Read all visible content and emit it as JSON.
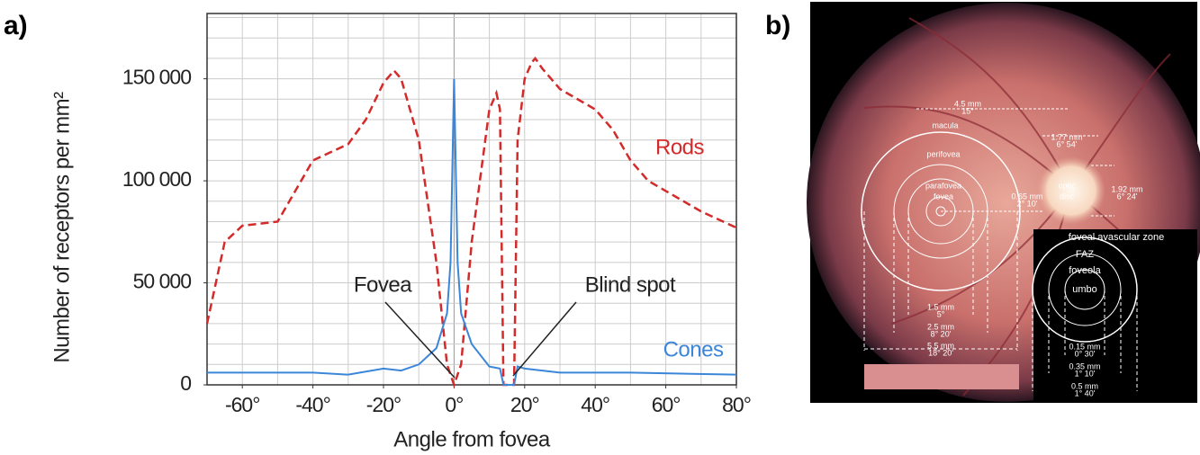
{
  "panels": {
    "a": "a)",
    "b": "b)"
  },
  "chart_data": {
    "type": "line",
    "ylabel": "Number of receptors per mm²",
    "xlabel": "Angle from fovea",
    "xlim": [
      -70,
      80
    ],
    "ylim": [
      0,
      182000
    ],
    "xticks": [
      {
        "value": -60,
        "label": "-60°"
      },
      {
        "value": -40,
        "label": "-40°"
      },
      {
        "value": -20,
        "label": "-20°"
      },
      {
        "value": 0,
        "label": "0°"
      },
      {
        "value": 20,
        "label": "20°"
      },
      {
        "value": 40,
        "label": "40°"
      },
      {
        "value": 60,
        "label": "60°"
      },
      {
        "value": 80,
        "label": "80°"
      }
    ],
    "yticks": [
      0,
      {
        "value": 50000,
        "label": "50 000"
      },
      {
        "value": 100000,
        "label": "100 000"
      },
      {
        "value": 150000,
        "label": "150 000"
      }
    ],
    "x_minor_ticks": [
      -70,
      -60,
      -50,
      -40,
      -30,
      -20,
      -10,
      0,
      10,
      20,
      30,
      40,
      50,
      60,
      70,
      80
    ],
    "y_minor_ticks": [
      10000,
      20000,
      30000,
      40000,
      50000,
      60000,
      70000,
      80000,
      90000,
      100000,
      110000,
      120000,
      130000,
      140000,
      150000,
      160000,
      170000,
      180000
    ],
    "grid": true,
    "series": [
      {
        "name": "Rods",
        "color": "#d42a2a",
        "dashed": true,
        "x": [
          -70,
          -65,
          -60,
          -50,
          -45,
          -40,
          -30,
          -25,
          -20,
          -17,
          -15,
          -10,
          -5,
          -2,
          0,
          2,
          5,
          10,
          12,
          13,
          14,
          17,
          18,
          20,
          22,
          23,
          25,
          30,
          40,
          45,
          50,
          55,
          60,
          65,
          70,
          80
        ],
        "values": [
          30000,
          70000,
          78000,
          80000,
          95000,
          110000,
          118000,
          130000,
          148000,
          154000,
          150000,
          120000,
          60000,
          10000,
          0,
          10000,
          70000,
          135000,
          143000,
          135000,
          0,
          0,
          120000,
          150000,
          158000,
          160000,
          155000,
          145000,
          135000,
          125000,
          110000,
          100000,
          95000,
          90000,
          85000,
          77000
        ]
      },
      {
        "name": "Cones",
        "color": "#3b86d8",
        "dashed": false,
        "x": [
          -70,
          -40,
          -30,
          -20,
          -15,
          -10,
          -5,
          -2,
          -1,
          0,
          1,
          2,
          5,
          10,
          13,
          14,
          17,
          18,
          20,
          30,
          50,
          80
        ],
        "values": [
          6000,
          6000,
          5000,
          8000,
          7000,
          10000,
          18000,
          35000,
          60000,
          150000,
          60000,
          35000,
          20000,
          9000,
          8000,
          0,
          0,
          9000,
          8000,
          6000,
          6000,
          5000
        ]
      }
    ],
    "annotations": [
      "Fovea",
      "Blind spot"
    ]
  },
  "fundus": {
    "labels": [
      "macula",
      "perifovea",
      "parafovea",
      "fovea",
      "optic",
      "disc",
      "4.5 mm",
      "15°",
      "1.77 mm",
      "6° 54'",
      "1.92 mm",
      "6° 24'",
      "0.65 mm",
      "2° 10'",
      "1.5 mm",
      "5°",
      "2.5 mm",
      "8° 20'",
      "5.5 mm",
      "18° 20'",
      "foveal avascular zone",
      "FAZ",
      "foveola",
      "umbo",
      "0.15 mm",
      "0° 30'",
      "0.35 mm",
      "1° 10'",
      "0.5 mm",
      "1° 40'"
    ]
  }
}
